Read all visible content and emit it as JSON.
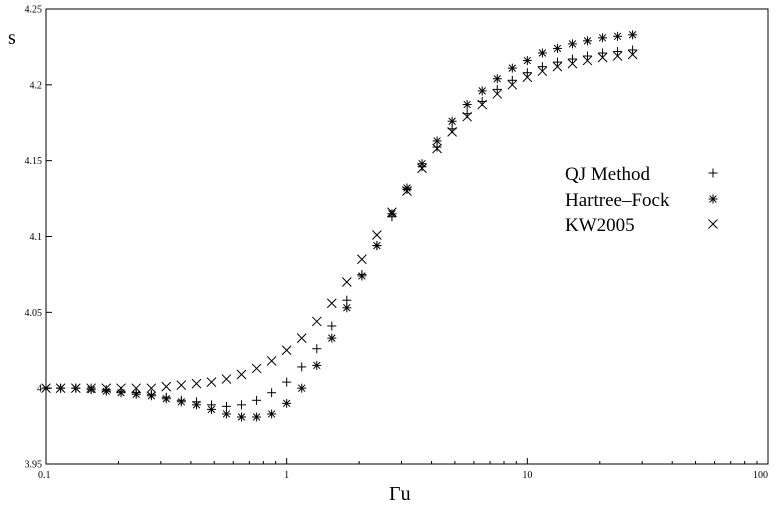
{
  "chart_data": {
    "type": "scatter",
    "xscale": "log",
    "xlim": [
      0.1,
      100
    ],
    "ylim": [
      3.95,
      4.25
    ],
    "xlabel": "Γu",
    "ylabel": "s",
    "grid": false,
    "legend_position": "right",
    "x_ticks": [
      {
        "value": 0.1,
        "label": "0.1"
      },
      {
        "value": 1,
        "label": "1"
      },
      {
        "value": 10,
        "label": "10"
      },
      {
        "value": 100,
        "label": "100"
      }
    ],
    "y_ticks": [
      {
        "value": 3.95,
        "label": "3.95"
      },
      {
        "value": 4.0,
        "label": "4"
      },
      {
        "value": 4.05,
        "label": "4.05"
      },
      {
        "value": 4.1,
        "label": "4.1"
      },
      {
        "value": 4.15,
        "label": "4.15"
      },
      {
        "value": 4.2,
        "label": "4.2"
      },
      {
        "value": 4.25,
        "label": "4.25"
      }
    ],
    "series": [
      {
        "name": "QJ Method",
        "marker": "plus",
        "points": [
          [
            0.1,
            4.0
          ],
          [
            0.115,
            4.0
          ],
          [
            0.133,
            4.0
          ],
          [
            0.154,
            4.0
          ],
          [
            0.178,
            3.999
          ],
          [
            0.205,
            3.998
          ],
          [
            0.237,
            3.997
          ],
          [
            0.274,
            3.996
          ],
          [
            0.316,
            3.994
          ],
          [
            0.365,
            3.992
          ],
          [
            0.422,
            3.991
          ],
          [
            0.487,
            3.989
          ],
          [
            0.562,
            3.988
          ],
          [
            0.649,
            3.989
          ],
          [
            0.75,
            3.992
          ],
          [
            0.866,
            3.997
          ],
          [
            1.0,
            4.004
          ],
          [
            1.155,
            4.014
          ],
          [
            1.334,
            4.026
          ],
          [
            1.54,
            4.041
          ],
          [
            1.778,
            4.058
          ],
          [
            2.054,
            4.075
          ],
          [
            2.371,
            4.094
          ],
          [
            2.738,
            4.113
          ],
          [
            3.162,
            4.131
          ],
          [
            3.652,
            4.146
          ],
          [
            4.217,
            4.159
          ],
          [
            4.87,
            4.171
          ],
          [
            5.623,
            4.181
          ],
          [
            6.494,
            4.189
          ],
          [
            7.499,
            4.197
          ],
          [
            8.66,
            4.203
          ],
          [
            10.0,
            4.208
          ],
          [
            11.55,
            4.212
          ],
          [
            13.34,
            4.215
          ],
          [
            15.4,
            4.217
          ],
          [
            17.78,
            4.219
          ],
          [
            20.54,
            4.221
          ],
          [
            23.71,
            4.222
          ],
          [
            27.38,
            4.223
          ]
        ]
      },
      {
        "name": "Hartree–Fock",
        "marker": "asterisk",
        "points": [
          [
            0.1,
            4.0
          ],
          [
            0.115,
            4.0
          ],
          [
            0.133,
            4.0
          ],
          [
            0.154,
            3.999
          ],
          [
            0.178,
            3.998
          ],
          [
            0.205,
            3.997
          ],
          [
            0.237,
            3.996
          ],
          [
            0.274,
            3.995
          ],
          [
            0.316,
            3.993
          ],
          [
            0.365,
            3.991
          ],
          [
            0.422,
            3.989
          ],
          [
            0.487,
            3.986
          ],
          [
            0.562,
            3.983
          ],
          [
            0.649,
            3.981
          ],
          [
            0.75,
            3.981
          ],
          [
            0.866,
            3.983
          ],
          [
            1.0,
            3.99
          ],
          [
            1.155,
            4.0
          ],
          [
            1.334,
            4.015
          ],
          [
            1.54,
            4.033
          ],
          [
            1.778,
            4.053
          ],
          [
            2.054,
            4.074
          ],
          [
            2.371,
            4.094
          ],
          [
            2.738,
            4.115
          ],
          [
            3.162,
            4.132
          ],
          [
            3.652,
            4.148
          ],
          [
            4.217,
            4.163
          ],
          [
            4.87,
            4.176
          ],
          [
            5.623,
            4.187
          ],
          [
            6.494,
            4.196
          ],
          [
            7.499,
            4.204
          ],
          [
            8.66,
            4.211
          ],
          [
            10.0,
            4.216
          ],
          [
            11.55,
            4.221
          ],
          [
            13.34,
            4.224
          ],
          [
            15.4,
            4.227
          ],
          [
            17.78,
            4.229
          ],
          [
            20.54,
            4.231
          ],
          [
            23.71,
            4.232
          ],
          [
            27.38,
            4.233
          ]
        ]
      },
      {
        "name": "KW2005",
        "marker": "cross",
        "points": [
          [
            0.1,
            4.0
          ],
          [
            0.115,
            4.0
          ],
          [
            0.133,
            4.0
          ],
          [
            0.154,
            4.0
          ],
          [
            0.178,
            4.0
          ],
          [
            0.205,
            4.0
          ],
          [
            0.237,
            4.0
          ],
          [
            0.274,
            4.0
          ],
          [
            0.316,
            4.001
          ],
          [
            0.365,
            4.002
          ],
          [
            0.422,
            4.003
          ],
          [
            0.487,
            4.004
          ],
          [
            0.562,
            4.006
          ],
          [
            0.649,
            4.009
          ],
          [
            0.75,
            4.013
          ],
          [
            0.866,
            4.018
          ],
          [
            1.0,
            4.025
          ],
          [
            1.155,
            4.033
          ],
          [
            1.334,
            4.044
          ],
          [
            1.54,
            4.056
          ],
          [
            1.778,
            4.07
          ],
          [
            2.054,
            4.085
          ],
          [
            2.371,
            4.101
          ],
          [
            2.738,
            4.116
          ],
          [
            3.162,
            4.13
          ],
          [
            3.652,
            4.145
          ],
          [
            4.217,
            4.158
          ],
          [
            4.87,
            4.169
          ],
          [
            5.623,
            4.179
          ],
          [
            6.494,
            4.187
          ],
          [
            7.499,
            4.194
          ],
          [
            8.66,
            4.2
          ],
          [
            10.0,
            4.205
          ],
          [
            11.55,
            4.209
          ],
          [
            13.34,
            4.212
          ],
          [
            15.4,
            4.214
          ],
          [
            17.78,
            4.216
          ],
          [
            20.54,
            4.218
          ],
          [
            23.71,
            4.219
          ],
          [
            27.38,
            4.22
          ]
        ]
      }
    ]
  }
}
